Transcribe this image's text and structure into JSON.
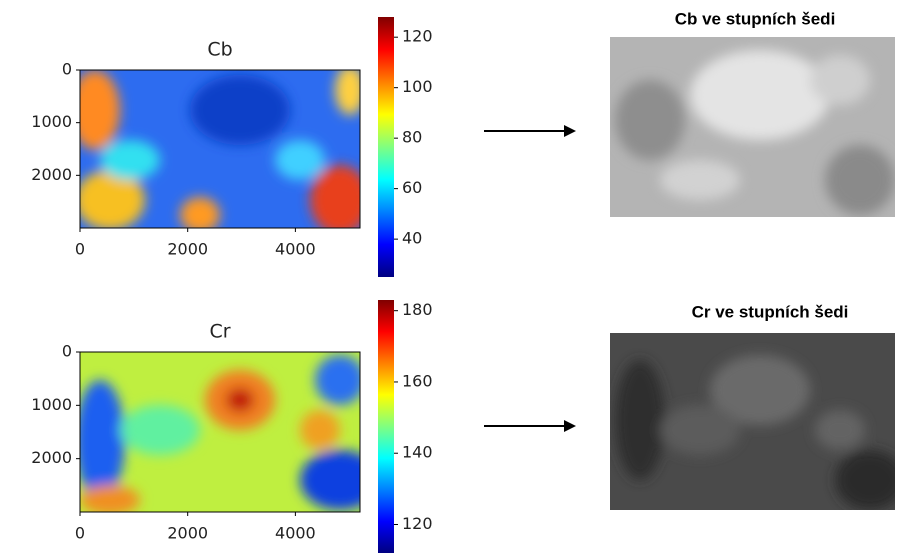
{
  "chart_data": [
    {
      "type": "image",
      "title": "Cb",
      "xlim": [
        0,
        5200
      ],
      "xticks": [
        0,
        2000,
        4000
      ],
      "ylim": [
        0,
        3000
      ],
      "yticks": [
        0,
        1000,
        2000
      ],
      "y_inverted": true,
      "colorbar": {
        "lim": [
          25,
          128
        ],
        "ticks": [
          40,
          60,
          80,
          100,
          120
        ],
        "colormap": "jet"
      }
    },
    {
      "type": "image",
      "title": "Cr",
      "xlim": [
        0,
        5200
      ],
      "xticks": [
        0,
        2000,
        4000
      ],
      "ylim": [
        0,
        3000
      ],
      "yticks": [
        0,
        1000,
        2000
      ],
      "y_inverted": true,
      "colorbar": {
        "lim": [
          112,
          183
        ],
        "ticks": [
          120,
          140,
          160,
          180
        ],
        "colormap": "jet"
      }
    }
  ],
  "gray_images": [
    {
      "title": "Cb ve stupních šedi"
    },
    {
      "title": "Cr ve stupních šedi"
    }
  ]
}
